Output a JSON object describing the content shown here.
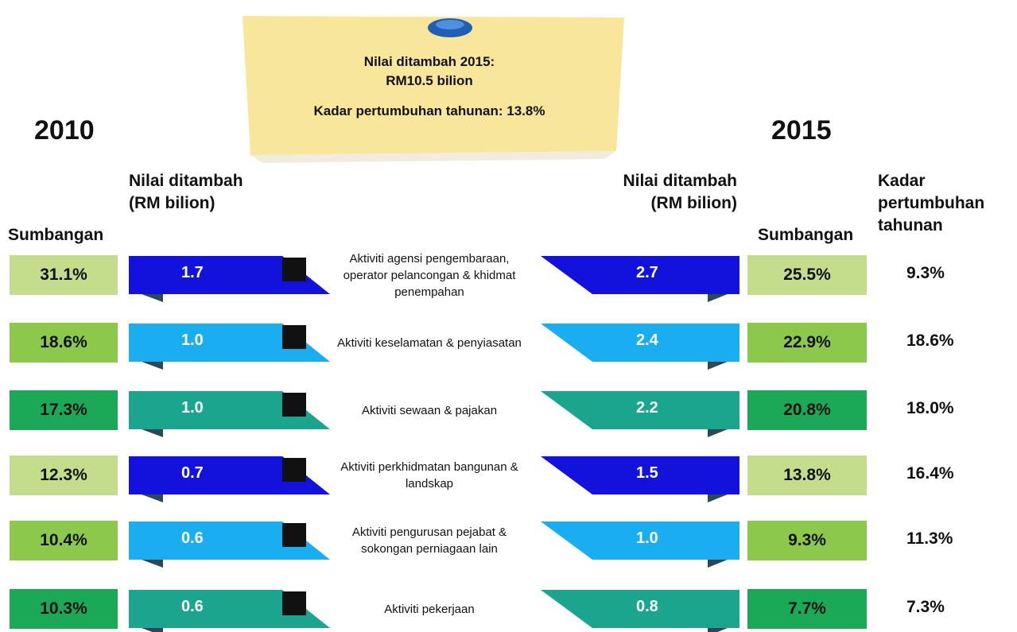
{
  "note": {
    "line1": "Nilai ditambah 2015:",
    "line2": "RM10.5 bilion",
    "line3": "Kadar pertumbuhan tahunan: 13.8%"
  },
  "year_left": "2010",
  "year_right": "2015",
  "headers": {
    "share_left": "Sumbangan",
    "value_left": "Nilai ditambah (RM bilion)",
    "value_right": "Nilai ditambah (RM bilion)",
    "share_right": "Sumbangan",
    "growth": "Kadar pertumbuhan tahunan"
  },
  "rows": [
    {
      "share_2010": "31.1%",
      "value_2010": "1.7",
      "activity": "Aktiviti agensi pengembaraan, operator pelancongan & khidmat penempahan",
      "value_2015": "2.7",
      "share_2015": "25.5%",
      "growth": "9.3%",
      "bar_color": "#1212dc",
      "box_color": "#c3dd8d"
    },
    {
      "share_2010": "18.6%",
      "value_2010": "1.0",
      "activity": "Aktiviti keselamatan & penyiasatan",
      "value_2015": "2.4",
      "share_2015": "22.9%",
      "growth": "18.6%",
      "bar_color": "#1aaef0",
      "box_color": "#8cc84b"
    },
    {
      "share_2010": "17.3%",
      "value_2010": "1.0",
      "activity": "Aktiviti sewaan & pajakan",
      "value_2015": "2.2",
      "share_2015": "20.8%",
      "growth": "18.0%",
      "bar_color": "#1ba58f",
      "box_color": "#1ca957"
    },
    {
      "share_2010": "12.3%",
      "value_2010": "0.7",
      "activity": "Aktiviti perkhidmatan bangunan & landskap",
      "value_2015": "1.5",
      "share_2015": "13.8%",
      "growth": "16.4%",
      "bar_color": "#1212dc",
      "box_color": "#c3dd8d"
    },
    {
      "share_2010": "10.4%",
      "value_2010": "0.6",
      "activity": "Aktiviti pengurusan pejabat & sokongan perniagaan lain",
      "value_2015": "1.0",
      "share_2015": "9.3%",
      "growth": "11.3%",
      "bar_color": "#1aaef0",
      "box_color": "#8cc84b"
    },
    {
      "share_2010": "10.3%",
      "value_2010": "0.6",
      "activity": "Aktiviti pekerjaan",
      "value_2015": "0.8",
      "share_2015": "7.7%",
      "growth": "7.3%",
      "bar_color": "#1ba58f",
      "box_color": "#1ca957"
    }
  ]
}
